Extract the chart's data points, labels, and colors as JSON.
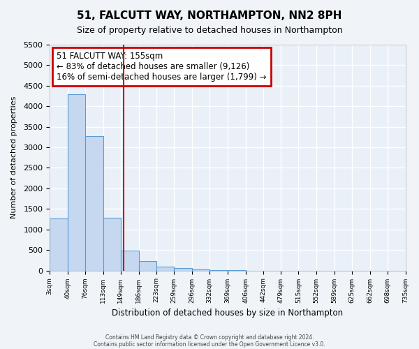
{
  "title": "51, FALCUTT WAY, NORTHAMPTON, NN2 8PH",
  "subtitle": "Size of property relative to detached houses in Northampton",
  "xlabel": "Distribution of detached houses by size in Northampton",
  "ylabel": "Number of detached properties",
  "bar_color": "#c5d8f0",
  "bar_edgecolor": "#5b9bd5",
  "background_color": "#eaf0f8",
  "grid_color": "#ffffff",
  "vline_x": 155,
  "vline_color": "#cc0000",
  "annotation_title": "51 FALCUTT WAY: 155sqm",
  "annotation_line1": "← 83% of detached houses are smaller (9,126)",
  "annotation_line2": "16% of semi-detached houses are larger (1,799) →",
  "annotation_box_edgecolor": "#cc0000",
  "bin_edges": [
    3,
    40,
    76,
    113,
    149,
    186,
    223,
    259,
    296,
    332,
    369,
    406,
    442,
    479,
    515,
    552,
    589,
    625,
    662,
    698,
    735
  ],
  "bar_heights": [
    1270,
    4300,
    3280,
    1290,
    490,
    230,
    90,
    60,
    30,
    10,
    5,
    0,
    0,
    0,
    0,
    0,
    0,
    0,
    0,
    0
  ],
  "ylim": [
    0,
    5500
  ],
  "yticks": [
    0,
    500,
    1000,
    1500,
    2000,
    2500,
    3000,
    3500,
    4000,
    4500,
    5000,
    5500
  ],
  "footnote1": "Contains HM Land Registry data © Crown copyright and database right 2024.",
  "footnote2": "Contains public sector information licensed under the Open Government Licence v3.0."
}
